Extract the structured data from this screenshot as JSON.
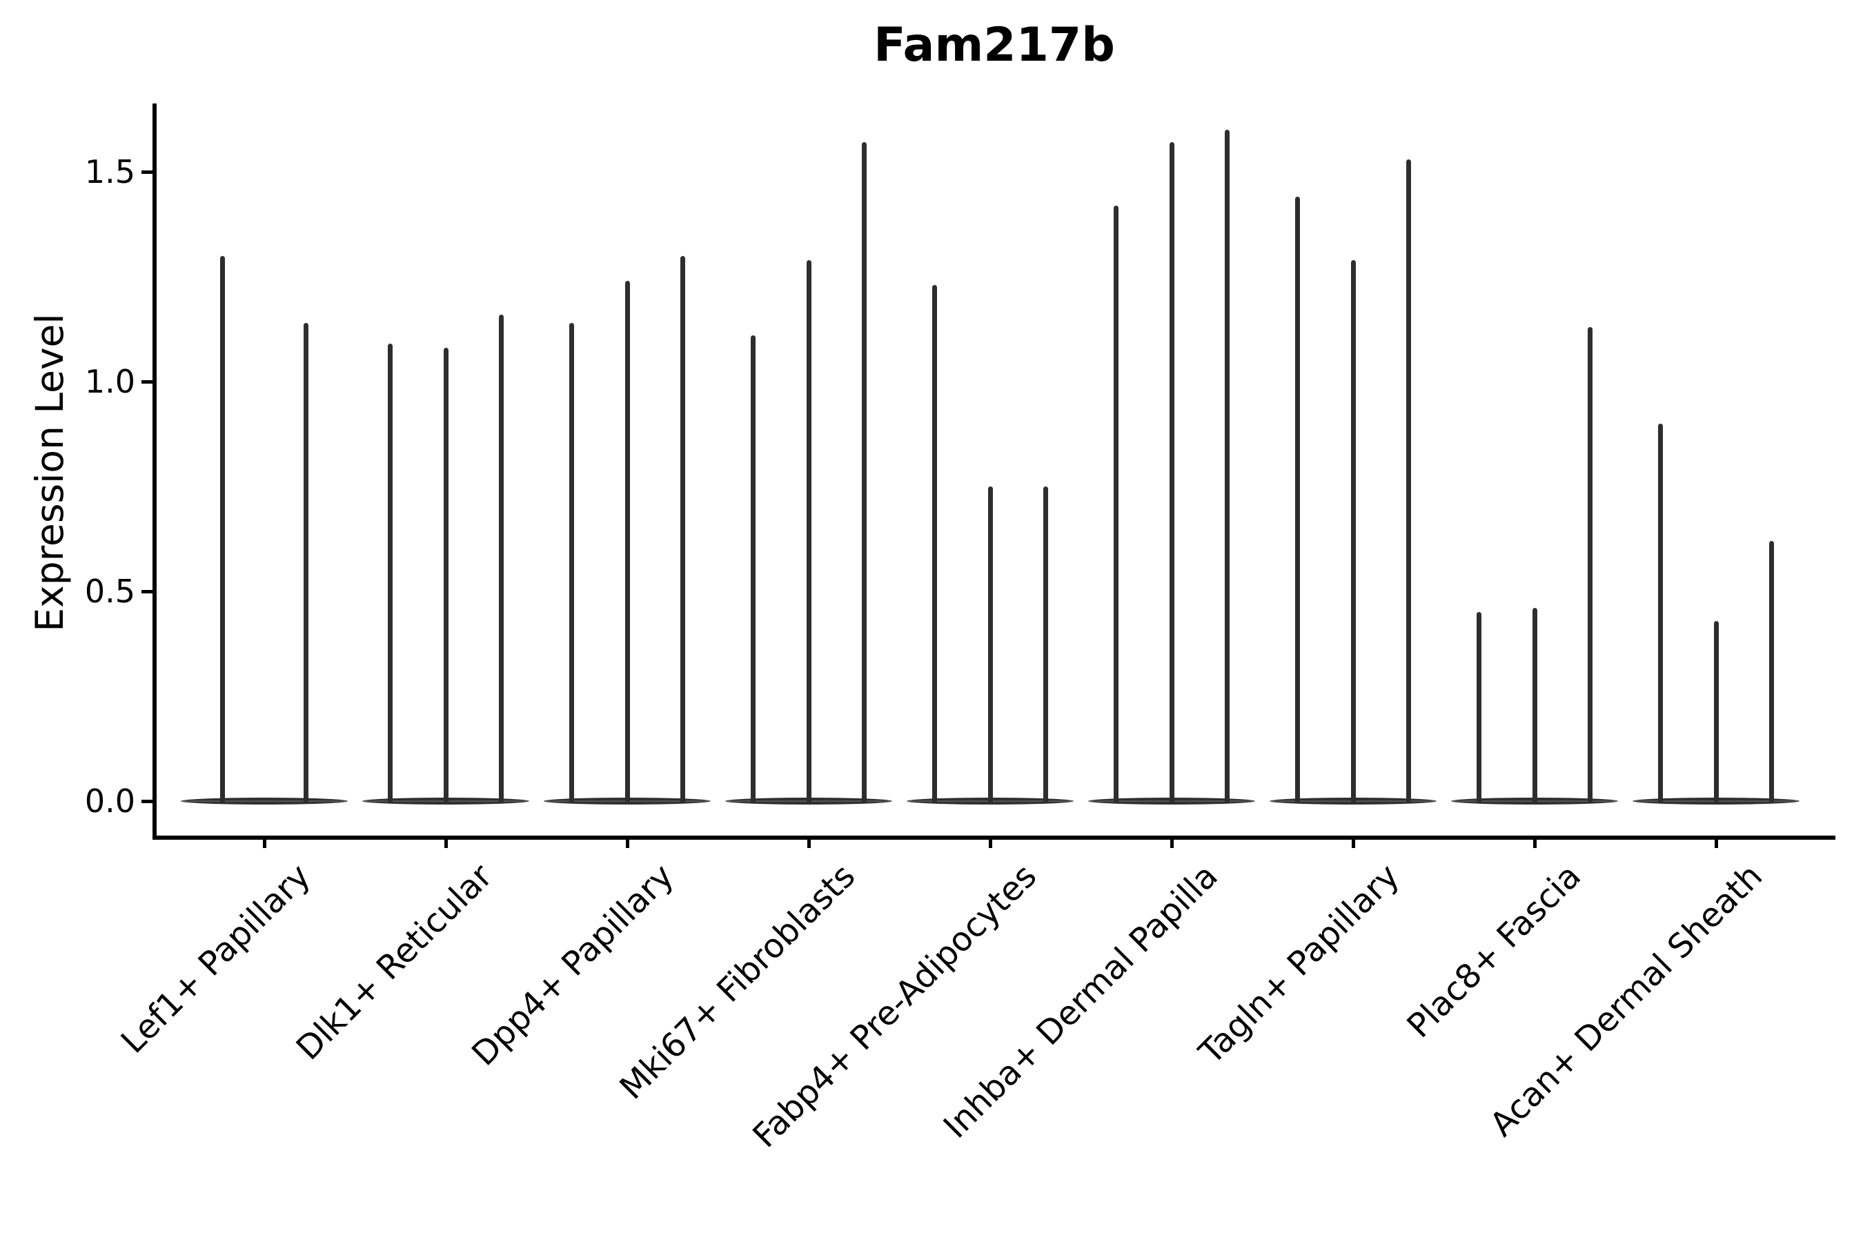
{
  "figure": {
    "background_color": "#ffffff",
    "ink_color": "#2e2e2e",
    "axis_color": "#000000",
    "text_color": "#000000"
  },
  "chart_data": {
    "type": "violin",
    "title": "Fam217b",
    "xlabel": "",
    "ylabel": "Expression Level",
    "ylim": [
      0.0,
      1.66
    ],
    "yticks": [
      0.0,
      0.5,
      1.0,
      1.5
    ],
    "ytick_labels": [
      "0.0",
      "0.5",
      "1.0",
      "1.5"
    ],
    "grid": false,
    "legend_position": "none",
    "x_label_rotation_deg": 45,
    "categories": [
      "Lef1+ Papillary",
      "Dlk1+ Reticular",
      "Dpp4+ Papillary",
      "Mki67+ Fibroblasts",
      "Fabp4+ Pre-Adipocytes",
      "Inhba+ Dermal Papilla",
      "Tagln+ Papillary",
      "Plac8+ Fascia",
      "Acan+ Dermal Sheath"
    ],
    "groups": [
      {
        "category": "Lef1+ Papillary",
        "violin_max_values": [
          1.3,
          1.14
        ]
      },
      {
        "category": "Dlk1+ Reticular",
        "violin_max_values": [
          1.09,
          1.08,
          1.16
        ]
      },
      {
        "category": "Dpp4+ Papillary",
        "violin_max_values": [
          1.14,
          1.24,
          1.3
        ]
      },
      {
        "category": "Mki67+ Fibroblasts",
        "violin_max_values": [
          1.11,
          1.29,
          1.57
        ]
      },
      {
        "category": "Fabp4+ Pre-Adipocytes",
        "violin_max_values": [
          1.23,
          0.75,
          0.75
        ]
      },
      {
        "category": "Inhba+ Dermal Papilla",
        "violin_max_values": [
          1.42,
          1.57,
          1.6
        ]
      },
      {
        "category": "Tagln+ Papillary",
        "violin_max_values": [
          1.44,
          1.29,
          1.53
        ]
      },
      {
        "category": "Plac8+ Fascia",
        "violin_max_values": [
          0.45,
          0.46,
          1.13
        ]
      },
      {
        "category": "Acan+ Dermal Sheath",
        "violin_max_values": [
          0.9,
          0.43,
          0.62
        ]
      }
    ],
    "violin_baseline_value": 0.0
  }
}
